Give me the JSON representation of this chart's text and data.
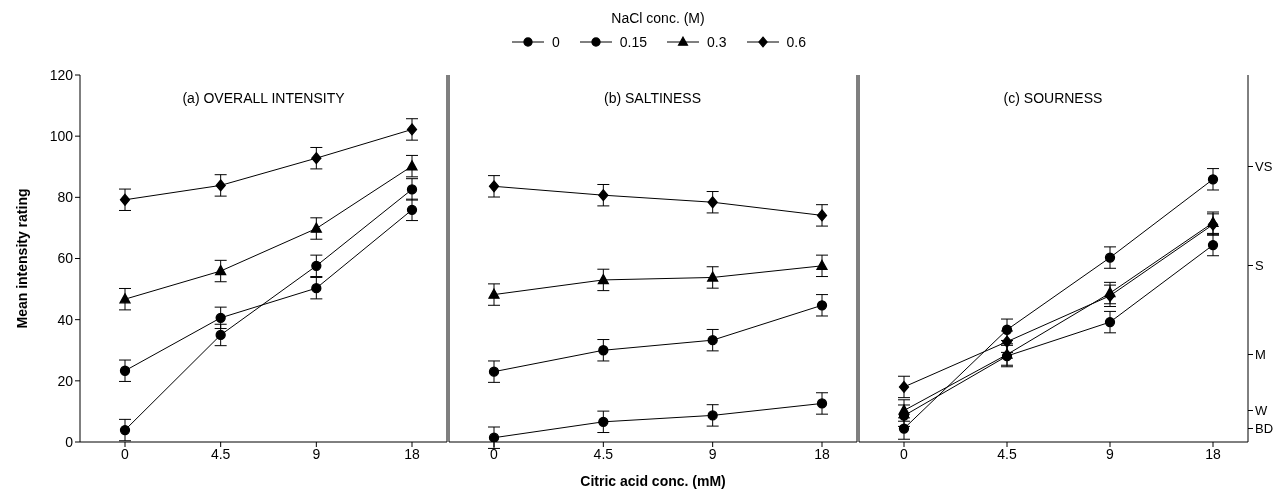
{
  "chart_data": [
    {
      "type": "line",
      "title": "(a) OVERALL INTENSITY",
      "ylabel": "Mean intensity rating",
      "categories": [
        "0",
        "4.5",
        "9",
        "18"
      ],
      "ylim": [
        0,
        120
      ],
      "yticks": [
        0,
        20,
        40,
        60,
        80,
        100,
        120
      ],
      "grid": false,
      "line_style": "solid",
      "series": [
        {
          "color": "#000000",
          "marker": "circle",
          "values": [
            3.9,
            35,
            57.6,
            82.6
          ],
          "errors": [
            3.5,
            3.5,
            3.5,
            3.5
          ]
        },
        {
          "color": "#000000",
          "marker": "circle",
          "values": [
            23.3,
            40.6,
            50.3,
            75.9
          ],
          "errors": [
            3.5,
            3.5,
            3.5,
            3.5
          ]
        },
        {
          "color": "#000000",
          "marker": "triangle",
          "values": [
            46.7,
            55.9,
            69.8,
            90.2
          ],
          "errors": [
            3.5,
            3.5,
            3.5,
            3.5
          ]
        },
        {
          "color": "#000000",
          "marker": "diamond",
          "values": [
            79.2,
            83.9,
            92.8,
            102.2
          ],
          "errors": [
            3.5,
            3.5,
            3.5,
            3.5
          ]
        }
      ]
    },
    {
      "type": "line",
      "title": "(b) SALTINESS",
      "xlabel": "Citric acid conc. (mM)",
      "legend_title": "NaCl conc. (M)",
      "categories": [
        "0",
        "4.5",
        "9",
        "18"
      ],
      "ylim": [
        0,
        120
      ],
      "yticks": [
        0,
        20,
        40,
        60,
        80,
        100,
        120
      ],
      "tick_labels": "x",
      "grid": false,
      "legend": "top",
      "line_style": "solid",
      "series": [
        {
          "name": "0",
          "color": "#000000",
          "marker": "circle",
          "values": [
            1.4,
            6.6,
            8.7,
            12.6
          ],
          "errors": [
            3.5,
            3.5,
            3.5,
            3.5
          ]
        },
        {
          "name": "0.15",
          "color": "#000000",
          "marker": "circle",
          "values": [
            23,
            30,
            33.3,
            44.7
          ],
          "errors": [
            3.5,
            3.5,
            3.5,
            3.5
          ]
        },
        {
          "name": "0.3",
          "color": "#000000",
          "marker": "triangle",
          "values": [
            48.2,
            53,
            53.8,
            57.6
          ],
          "errors": [
            3.5,
            3.5,
            3.5,
            3.5
          ]
        },
        {
          "name": "0.6",
          "color": "#000000",
          "marker": "diamond",
          "values": [
            83.6,
            80.7,
            78.4,
            74.1
          ],
          "errors": [
            3.5,
            3.5,
            3.5,
            3.5
          ]
        }
      ]
    },
    {
      "type": "line",
      "title": "(c) SOURNESS",
      "categories": [
        "0",
        "4.5",
        "9",
        "18"
      ],
      "ylim": [
        0,
        120
      ],
      "yticks": [
        0,
        20,
        40,
        60,
        80,
        100,
        120
      ],
      "tick_labels": "x",
      "grid": false,
      "line_style": "solid",
      "annotations": [
        "VS",
        "S",
        "M",
        "W",
        "BD"
      ],
      "series": [
        {
          "color": "#000000",
          "marker": "circle",
          "values": [
            4.4,
            36.7,
            60.3,
            85.9
          ],
          "errors": [
            3.5,
            3.5,
            3.5,
            3.5
          ]
        },
        {
          "color": "#000000",
          "marker": "circle",
          "values": [
            8.6,
            28.1,
            39.2,
            64.4
          ],
          "errors": [
            3.5,
            3.5,
            3.5,
            3.5
          ]
        },
        {
          "color": "#000000",
          "marker": "triangle",
          "values": [
            10.3,
            28.6,
            48.7,
            71.7
          ],
          "errors": [
            3.5,
            3.5,
            3.5,
            3.5
          ]
        },
        {
          "color": "#000000",
          "marker": "diamond",
          "values": [
            18,
            32.8,
            47.8,
            71.1
          ],
          "errors": [
            3.5,
            3.5,
            3.5,
            3.5
          ]
        }
      ]
    }
  ]
}
